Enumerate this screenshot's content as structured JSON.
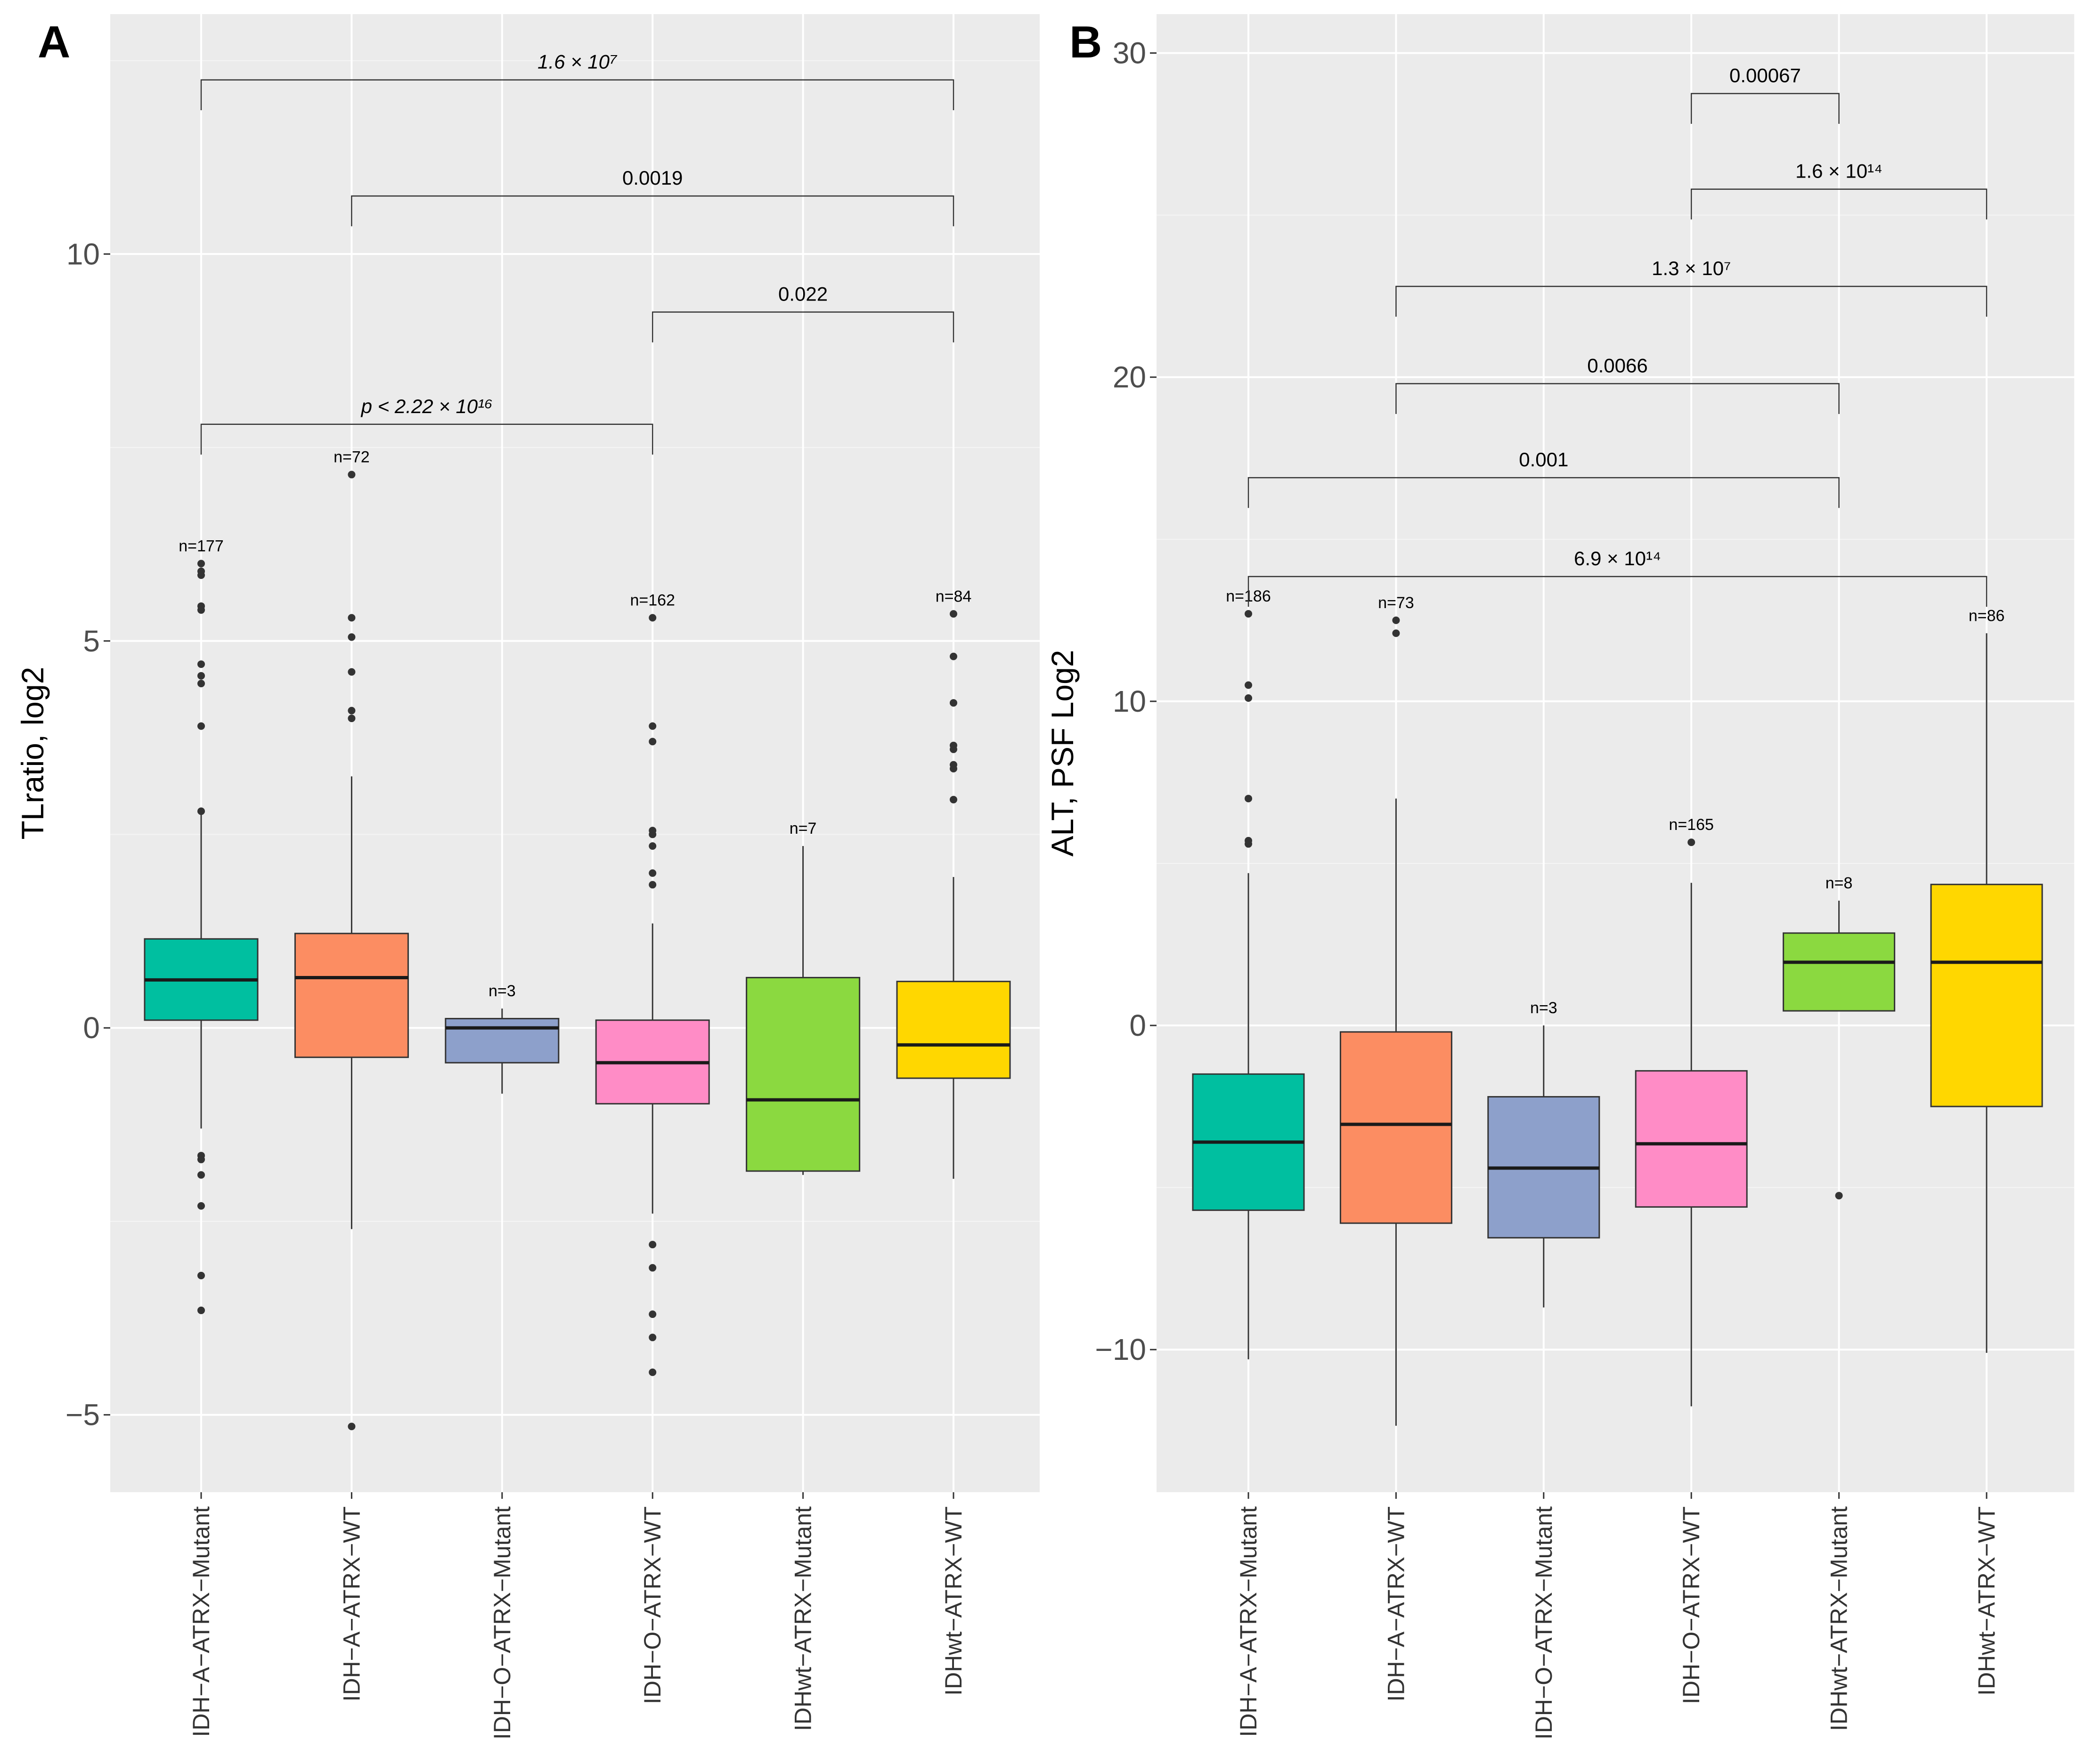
{
  "chart_data": [
    {
      "panel": "A",
      "type": "box",
      "ylabel": "TLratio, log2",
      "xlabel": "",
      "ylim": [
        -6,
        13.1
      ],
      "yticks": [
        -5,
        0,
        5,
        10
      ],
      "ytick_labels": [
        "−5",
        "0",
        "5",
        "10"
      ],
      "categories": [
        "IDH−A−ATRX−Mutant",
        "IDH−A−ATRX−WT",
        "IDH−O−ATRX−Mutant",
        "IDH−O−ATRX−WT",
        "IDHwt−ATRX−Mutant",
        "IDHwt−ATRX−WT"
      ],
      "colors": [
        "#00BFA0",
        "#FC8D62",
        "#8DA0CB",
        "#FF8CC6",
        "#8BD940",
        "#FFD700"
      ],
      "boxes": [
        {
          "n_label": "n=177",
          "q1": 0.1,
          "median": 0.62,
          "q3": 1.15,
          "whisker_low": -1.3,
          "whisker_high": 2.8,
          "outliers": [
            6.0,
            5.9,
            5.85,
            5.45,
            5.4,
            4.7,
            4.55,
            4.45,
            3.9,
            2.8,
            -1.65,
            -1.7,
            -1.9,
            -2.3,
            -3.2,
            -3.65
          ]
        },
        {
          "n_label": "n=72",
          "q1": -0.38,
          "median": 0.65,
          "q3": 1.22,
          "whisker_low": -2.6,
          "whisker_high": 3.25,
          "outliers": [
            7.15,
            5.3,
            5.05,
            4.6,
            4.1,
            4.0,
            -5.15
          ]
        },
        {
          "n_label": "n=3",
          "q1": -0.45,
          "median": 0.0,
          "q3": 0.12,
          "whisker_low": -0.85,
          "whisker_high": 0.25,
          "outliers": []
        },
        {
          "n_label": "n=162",
          "q1": -0.98,
          "median": -0.45,
          "q3": 0.1,
          "whisker_low": -2.4,
          "whisker_high": 1.35,
          "outliers": [
            5.3,
            3.9,
            3.7,
            2.55,
            2.5,
            2.35,
            2.0,
            1.85,
            -2.8,
            -3.1,
            -3.7,
            -4.0,
            -4.45
          ]
        },
        {
          "n_label": "n=7",
          "q1": -1.85,
          "median": -0.93,
          "q3": 0.65,
          "whisker_low": -1.9,
          "whisker_high": 2.35,
          "outliers": []
        },
        {
          "n_label": "n=84",
          "q1": -0.65,
          "median": -0.22,
          "q3": 0.6,
          "whisker_low": -1.95,
          "whisker_high": 1.95,
          "outliers": [
            5.35,
            4.8,
            4.2,
            3.65,
            3.6,
            3.4,
            3.35,
            2.95
          ]
        }
      ],
      "comparisons": [
        {
          "from": 0,
          "to": 5,
          "y": 12.25,
          "label": "1.6 × 10⁷"
        },
        {
          "from": 1,
          "to": 5,
          "y": 10.75,
          "label": "0.0019"
        },
        {
          "from": 3,
          "to": 5,
          "y": 9.25,
          "label": "0.022"
        },
        {
          "from": 0,
          "to": 3,
          "y": 7.8,
          "label": "p < 2.22 × 10¹⁶"
        }
      ]
    },
    {
      "panel": "B",
      "type": "box",
      "ylabel": "ALT, PSF Log2",
      "xlabel": "",
      "ylim": [
        -14.4,
        31.2
      ],
      "yticks": [
        -10,
        0,
        10,
        20,
        30
      ],
      "ytick_labels": [
        "−10",
        "0",
        "10",
        "20",
        "30"
      ],
      "categories": [
        "IDH−A−ATRX−Mutant",
        "IDH−A−ATRX−WT",
        "IDH−O−ATRX−Mutant",
        "IDH−O−ATRX−WT",
        "IDHwt−ATRX−Mutant",
        "IDHwt−ATRX−WT"
      ],
      "colors": [
        "#00BFA0",
        "#FC8D62",
        "#8DA0CB",
        "#FF8CC6",
        "#8BD940",
        "#FFD700"
      ],
      "boxes": [
        {
          "n_label": "n=186",
          "q1": -5.7,
          "median": -3.6,
          "q3": -1.5,
          "whisker_low": -10.3,
          "whisker_high": 4.7,
          "outliers": [
            12.7,
            10.5,
            10.1,
            7.0,
            5.7,
            5.6
          ]
        },
        {
          "n_label": "n=73",
          "q1": -6.1,
          "median": -3.05,
          "q3": -0.2,
          "whisker_low": -12.35,
          "whisker_high": 7.0,
          "outliers": [
            12.5,
            12.1
          ]
        },
        {
          "n_label": "n=3",
          "q1": -6.55,
          "median": -4.4,
          "q3": -2.2,
          "whisker_low": -8.7,
          "whisker_high": 0.0,
          "outliers": []
        },
        {
          "n_label": "n=165",
          "q1": -5.6,
          "median": -3.65,
          "q3": -1.4,
          "whisker_low": -11.75,
          "whisker_high": 4.4,
          "outliers": [
            5.65
          ]
        },
        {
          "n_label": "n=8",
          "q1": 0.45,
          "median": 1.95,
          "q3": 2.85,
          "whisker_low": 0.45,
          "whisker_high": 3.85,
          "outliers": [
            -5.25
          ]
        },
        {
          "n_label": "n=86",
          "q1": -2.5,
          "median": 1.95,
          "q3": 4.35,
          "whisker_low": -10.1,
          "whisker_high": 12.1,
          "outliers": []
        }
      ],
      "comparisons": [
        {
          "from": 3,
          "to": 4,
          "y": 28.75,
          "label": "0.00067"
        },
        {
          "from": 3,
          "to": 5,
          "y": 25.8,
          "label": "1.6 × 10¹⁴"
        },
        {
          "from": 1,
          "to": 5,
          "y": 22.8,
          "label": "1.3 × 10⁷"
        },
        {
          "from": 1,
          "to": 4,
          "y": 19.8,
          "label": "0.0066"
        },
        {
          "from": 0,
          "to": 4,
          "y": 16.9,
          "label": "0.001"
        },
        {
          "from": 0,
          "to": 5,
          "y": 13.85,
          "label": "6.9 × 10¹⁴"
        }
      ]
    }
  ]
}
